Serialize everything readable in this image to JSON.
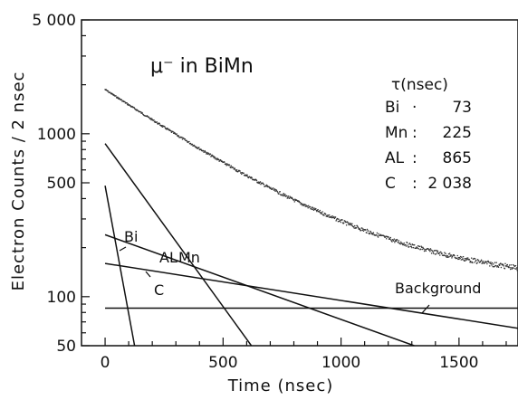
{
  "chart_data": {
    "type": "line",
    "title": "μ⁻ in BiMn",
    "xlabel": "Time (nsec)",
    "ylabel": "Electron Counts / 2 nsec",
    "xlim": [
      -100,
      1750
    ],
    "ylim": [
      50,
      5000
    ],
    "yscale": "log",
    "x_ticks": [
      {
        "label": "0",
        "value": 0
      },
      {
        "label": "500",
        "value": 500
      },
      {
        "label": "1000",
        "value": 1000
      },
      {
        "label": "1500",
        "value": 1500
      }
    ],
    "y_ticks": [
      {
        "label": "5 000",
        "value": 5000
      },
      {
        "label": "1000",
        "value": 1000
      },
      {
        "label": "500",
        "value": 500
      },
      {
        "label": "100",
        "value": 100
      },
      {
        "label": "50",
        "value": 50
      }
    ],
    "table": {
      "header": "τ(nsec)",
      "rows": [
        {
          "element": "Bi",
          "sep": "·",
          "tau": "73"
        },
        {
          "element": "Mn",
          "sep": ":",
          "tau": "225"
        },
        {
          "element": "AL",
          "sep": ":",
          "tau": "865"
        },
        {
          "element": "C",
          "sep": ":",
          "tau": "2 038"
        }
      ]
    },
    "series": [
      {
        "name": "Bi",
        "label": "Bi",
        "tau": 73,
        "points": [
          [
            0,
            480
          ],
          [
            125,
            50
          ]
        ]
      },
      {
        "name": "Mn",
        "label": "Mn",
        "tau": 225,
        "points": [
          [
            0,
            870
          ],
          [
            620,
            50
          ]
        ]
      },
      {
        "name": "AL",
        "label": "AL",
        "tau": 865,
        "points": [
          [
            0,
            240
          ],
          [
            1310,
            50
          ]
        ]
      },
      {
        "name": "C",
        "label": "C",
        "tau": 2038,
        "points": [
          [
            0,
            160
          ],
          [
            1750,
            64
          ]
        ]
      },
      {
        "name": "Background",
        "label": "Background",
        "points": [
          [
            0,
            85
          ],
          [
            1750,
            85
          ]
        ]
      }
    ],
    "data_curve": {
      "name": "measured counts",
      "amplitude": 1750,
      "tau": 430,
      "offset": 120,
      "x_range": [
        0,
        1750
      ]
    }
  }
}
